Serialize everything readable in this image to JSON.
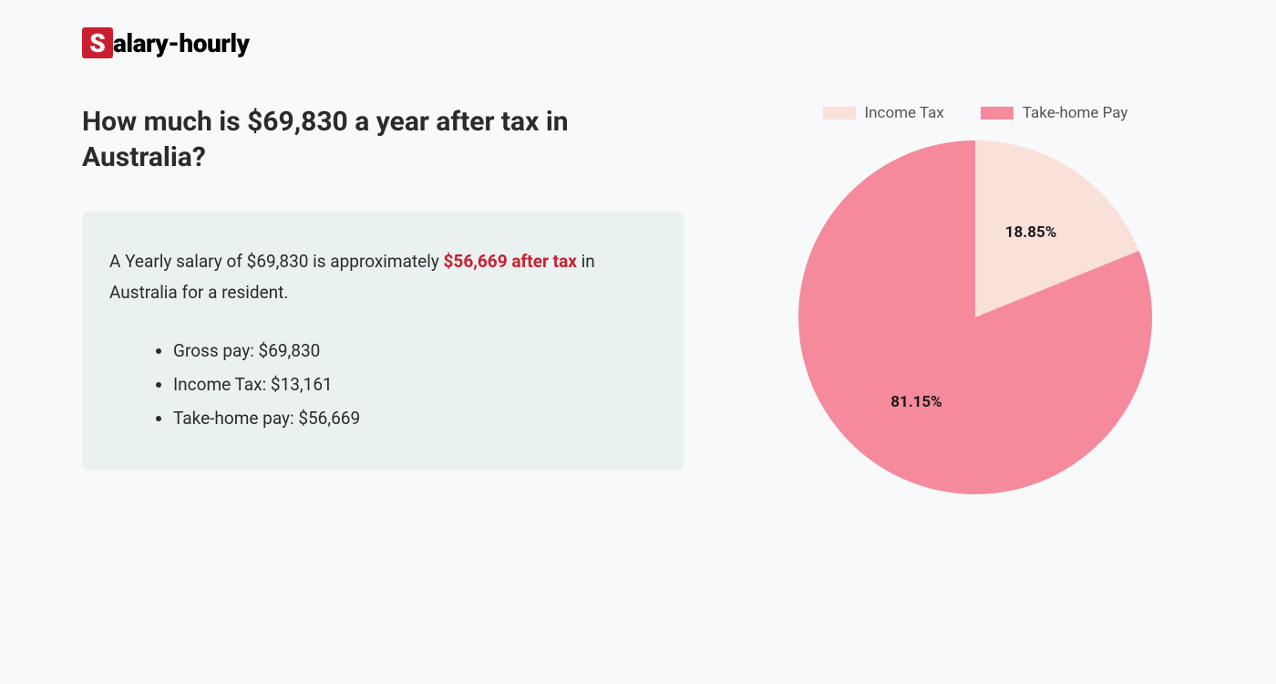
{
  "logo": {
    "s": "S",
    "rest": "alary-hourly"
  },
  "title": "How much is $69,830 a year after tax in Australia?",
  "summary": {
    "prefix": "A Yearly salary of $69,830 is approximately ",
    "highlight": "$56,669 after tax",
    "suffix": " in Australia for a resident."
  },
  "bullets": [
    "Gross pay: $69,830",
    "Income Tax: $13,161",
    "Take-home pay: $56,669"
  ],
  "chart": {
    "type": "pie",
    "radius": 194,
    "background_color": "#f7f9fa",
    "slices": [
      {
        "label": "Income Tax",
        "value": 18.85,
        "color": "#f9e0d9",
        "display": "18.85%"
      },
      {
        "label": "Take-home Pay",
        "value": 81.15,
        "color": "#f48a9b",
        "display": "81.15%"
      }
    ],
    "legend_text_color": "#555555",
    "label_text_color": "#1a1a1a",
    "label_fontsize": 17,
    "legend_fontsize": 17,
    "swatch_width": 36,
    "swatch_height": 14,
    "start_angle_deg": -90
  },
  "colors": {
    "page_bg": "#f7f9fa",
    "box_bg": "#eaf1f1",
    "accent": "#c91f2f",
    "text": "#2b2b2b"
  }
}
